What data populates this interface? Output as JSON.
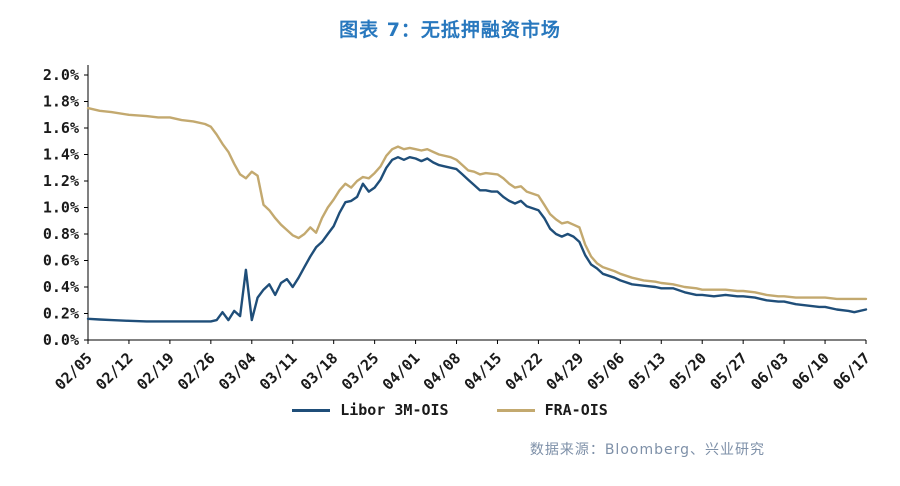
{
  "title": "图表 7：无抵押融资市场",
  "source": "数据来源：Bloomberg、兴业研究",
  "colors": {
    "title": "#2878BE",
    "axis": "#000000",
    "tick_text": "#1a1a1a",
    "source_text": "#7E90A8",
    "libor_line": "#1F4E79",
    "fra_line": "#C3A96F"
  },
  "chart_data": {
    "type": "line",
    "title": "图表 7：无抵押融资市场",
    "xlabel": "",
    "ylabel": "",
    "grid": false,
    "legend_position": "bottom",
    "ylim": [
      0.0,
      2.0
    ],
    "ytick_step": 0.2,
    "ytick_format": "percent_one_decimal",
    "xlim": [
      0,
      133
    ],
    "x_tick_positions": [
      0,
      7,
      14,
      21,
      28,
      35,
      42,
      49,
      56,
      63,
      70,
      77,
      84,
      91,
      98,
      105,
      112,
      119,
      126,
      133
    ],
    "x_tick_labels": [
      "02/05",
      "02/12",
      "02/19",
      "02/26",
      "03/04",
      "03/11",
      "03/18",
      "03/25",
      "04/01",
      "04/08",
      "04/15",
      "04/22",
      "04/29",
      "05/06",
      "05/13",
      "05/20",
      "05/27",
      "06/03",
      "06/10",
      "06/17"
    ],
    "series": [
      {
        "name": "Libor 3M-OIS",
        "color": "#1F4E79",
        "points": [
          [
            0,
            0.16
          ],
          [
            2,
            0.155
          ],
          [
            4,
            0.15
          ],
          [
            7,
            0.145
          ],
          [
            10,
            0.14
          ],
          [
            14,
            0.14
          ],
          [
            18,
            0.14
          ],
          [
            21,
            0.14
          ],
          [
            22,
            0.15
          ],
          [
            23,
            0.21
          ],
          [
            24,
            0.15
          ],
          [
            25,
            0.22
          ],
          [
            26,
            0.18
          ],
          [
            27,
            0.53
          ],
          [
            28,
            0.15
          ],
          [
            29,
            0.32
          ],
          [
            30,
            0.38
          ],
          [
            31,
            0.42
          ],
          [
            32,
            0.34
          ],
          [
            33,
            0.43
          ],
          [
            34,
            0.46
          ],
          [
            35,
            0.4
          ],
          [
            36,
            0.47
          ],
          [
            37,
            0.55
          ],
          [
            38,
            0.63
          ],
          [
            39,
            0.7
          ],
          [
            40,
            0.74
          ],
          [
            41,
            0.8
          ],
          [
            42,
            0.86
          ],
          [
            43,
            0.96
          ],
          [
            44,
            1.04
          ],
          [
            45,
            1.05
          ],
          [
            46,
            1.08
          ],
          [
            47,
            1.18
          ],
          [
            48,
            1.12
          ],
          [
            49,
            1.15
          ],
          [
            50,
            1.21
          ],
          [
            51,
            1.3
          ],
          [
            52,
            1.36
          ],
          [
            53,
            1.38
          ],
          [
            54,
            1.36
          ],
          [
            55,
            1.38
          ],
          [
            56,
            1.37
          ],
          [
            57,
            1.35
          ],
          [
            58,
            1.37
          ],
          [
            59,
            1.34
          ],
          [
            60,
            1.32
          ],
          [
            61,
            1.31
          ],
          [
            63,
            1.29
          ],
          [
            64,
            1.25
          ],
          [
            65,
            1.21
          ],
          [
            66,
            1.17
          ],
          [
            67,
            1.13
          ],
          [
            68,
            1.13
          ],
          [
            69,
            1.12
          ],
          [
            70,
            1.12
          ],
          [
            71,
            1.08
          ],
          [
            72,
            1.05
          ],
          [
            73,
            1.03
          ],
          [
            74,
            1.05
          ],
          [
            75,
            1.01
          ],
          [
            77,
            0.98
          ],
          [
            78,
            0.92
          ],
          [
            79,
            0.84
          ],
          [
            80,
            0.8
          ],
          [
            81,
            0.78
          ],
          [
            82,
            0.8
          ],
          [
            83,
            0.78
          ],
          [
            84,
            0.74
          ],
          [
            85,
            0.64
          ],
          [
            86,
            0.57
          ],
          [
            87,
            0.54
          ],
          [
            88,
            0.5
          ],
          [
            90,
            0.47
          ],
          [
            91,
            0.45
          ],
          [
            93,
            0.42
          ],
          [
            95,
            0.41
          ],
          [
            97,
            0.4
          ],
          [
            98,
            0.39
          ],
          [
            100,
            0.39
          ],
          [
            102,
            0.36
          ],
          [
            104,
            0.34
          ],
          [
            105,
            0.34
          ],
          [
            107,
            0.33
          ],
          [
            109,
            0.34
          ],
          [
            111,
            0.33
          ],
          [
            112,
            0.33
          ],
          [
            114,
            0.32
          ],
          [
            116,
            0.3
          ],
          [
            118,
            0.29
          ],
          [
            119,
            0.29
          ],
          [
            121,
            0.27
          ],
          [
            123,
            0.26
          ],
          [
            125,
            0.25
          ],
          [
            126,
            0.25
          ],
          [
            128,
            0.23
          ],
          [
            130,
            0.22
          ],
          [
            131,
            0.21
          ],
          [
            133,
            0.23
          ]
        ]
      },
      {
        "name": "FRA-OIS",
        "color": "#C3A96F",
        "points": [
          [
            0,
            1.75
          ],
          [
            2,
            1.73
          ],
          [
            4,
            1.72
          ],
          [
            7,
            1.7
          ],
          [
            10,
            1.69
          ],
          [
            12,
            1.68
          ],
          [
            14,
            1.68
          ],
          [
            16,
            1.66
          ],
          [
            18,
            1.65
          ],
          [
            20,
            1.63
          ],
          [
            21,
            1.61
          ],
          [
            22,
            1.55
          ],
          [
            23,
            1.48
          ],
          [
            24,
            1.42
          ],
          [
            25,
            1.33
          ],
          [
            26,
            1.25
          ],
          [
            27,
            1.22
          ],
          [
            28,
            1.27
          ],
          [
            29,
            1.24
          ],
          [
            30,
            1.02
          ],
          [
            31,
            0.98
          ],
          [
            32,
            0.92
          ],
          [
            33,
            0.87
          ],
          [
            34,
            0.83
          ],
          [
            35,
            0.79
          ],
          [
            36,
            0.77
          ],
          [
            37,
            0.8
          ],
          [
            38,
            0.85
          ],
          [
            39,
            0.81
          ],
          [
            40,
            0.92
          ],
          [
            41,
            1.0
          ],
          [
            42,
            1.06
          ],
          [
            43,
            1.13
          ],
          [
            44,
            1.18
          ],
          [
            45,
            1.15
          ],
          [
            46,
            1.2
          ],
          [
            47,
            1.23
          ],
          [
            48,
            1.22
          ],
          [
            49,
            1.26
          ],
          [
            50,
            1.31
          ],
          [
            51,
            1.39
          ],
          [
            52,
            1.44
          ],
          [
            53,
            1.46
          ],
          [
            54,
            1.44
          ],
          [
            55,
            1.45
          ],
          [
            56,
            1.44
          ],
          [
            57,
            1.43
          ],
          [
            58,
            1.44
          ],
          [
            59,
            1.42
          ],
          [
            60,
            1.4
          ],
          [
            62,
            1.38
          ],
          [
            63,
            1.36
          ],
          [
            64,
            1.32
          ],
          [
            65,
            1.28
          ],
          [
            66,
            1.27
          ],
          [
            67,
            1.25
          ],
          [
            68,
            1.26
          ],
          [
            70,
            1.25
          ],
          [
            71,
            1.22
          ],
          [
            72,
            1.18
          ],
          [
            73,
            1.15
          ],
          [
            74,
            1.16
          ],
          [
            75,
            1.12
          ],
          [
            77,
            1.09
          ],
          [
            78,
            1.02
          ],
          [
            79,
            0.95
          ],
          [
            80,
            0.91
          ],
          [
            81,
            0.88
          ],
          [
            82,
            0.89
          ],
          [
            83,
            0.87
          ],
          [
            84,
            0.85
          ],
          [
            85,
            0.72
          ],
          [
            86,
            0.63
          ],
          [
            87,
            0.58
          ],
          [
            88,
            0.55
          ],
          [
            90,
            0.52
          ],
          [
            91,
            0.5
          ],
          [
            93,
            0.47
          ],
          [
            95,
            0.45
          ],
          [
            97,
            0.44
          ],
          [
            98,
            0.43
          ],
          [
            100,
            0.42
          ],
          [
            102,
            0.4
          ],
          [
            104,
            0.39
          ],
          [
            105,
            0.38
          ],
          [
            107,
            0.38
          ],
          [
            109,
            0.38
          ],
          [
            111,
            0.37
          ],
          [
            112,
            0.37
          ],
          [
            114,
            0.36
          ],
          [
            116,
            0.34
          ],
          [
            118,
            0.33
          ],
          [
            119,
            0.33
          ],
          [
            121,
            0.32
          ],
          [
            123,
            0.32
          ],
          [
            126,
            0.32
          ],
          [
            128,
            0.31
          ],
          [
            130,
            0.31
          ],
          [
            133,
            0.31
          ]
        ]
      }
    ]
  }
}
